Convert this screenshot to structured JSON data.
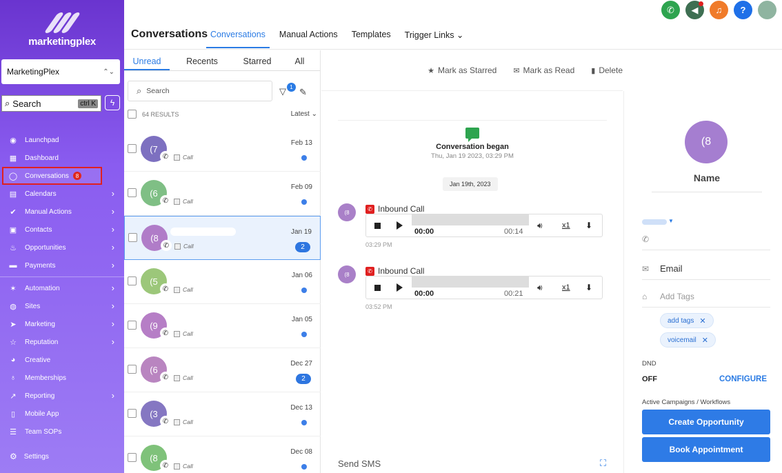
{
  "sidebar": {
    "brand": "marketingplex",
    "account": "MarketingPlex",
    "search_label": "Search",
    "search_shortcut": "ctrl K",
    "items": [
      {
        "label": "Launchpad",
        "icon": "rocket-icon",
        "glyph": "◉",
        "chevron": false
      },
      {
        "label": "Dashboard",
        "icon": "dashboard-icon",
        "glyph": "▦",
        "chevron": false
      },
      {
        "label": "Conversations",
        "icon": "chat-icon",
        "glyph": "◯",
        "chevron": false,
        "badge": "8",
        "active": true
      },
      {
        "label": "Calendars",
        "icon": "calendar-icon",
        "glyph": "▤",
        "chevron": true
      },
      {
        "label": "Manual Actions",
        "icon": "check-circle-icon",
        "glyph": "✔",
        "chevron": true
      },
      {
        "label": "Contacts",
        "icon": "contacts-icon",
        "glyph": "▣",
        "chevron": true
      },
      {
        "label": "Opportunities",
        "icon": "fire-icon",
        "glyph": "♨",
        "chevron": true
      },
      {
        "label": "Payments",
        "icon": "card-icon",
        "glyph": "▬",
        "chevron": true,
        "divider_after": true
      },
      {
        "label": "Automation",
        "icon": "magic-icon",
        "glyph": "✶",
        "chevron": true
      },
      {
        "label": "Sites",
        "icon": "globe-icon",
        "glyph": "◍",
        "chevron": true
      },
      {
        "label": "Marketing",
        "icon": "send-icon",
        "glyph": "➤",
        "chevron": true
      },
      {
        "label": "Reputation",
        "icon": "star-icon",
        "glyph": "☆",
        "chevron": true
      },
      {
        "label": "Creative",
        "icon": "palette-icon",
        "glyph": "◕",
        "chevron": false
      },
      {
        "label": "Memberships",
        "icon": "award-icon",
        "glyph": "♁",
        "chevron": false
      },
      {
        "label": "Reporting",
        "icon": "chart-icon",
        "glyph": "↗",
        "chevron": true
      },
      {
        "label": "Mobile App",
        "icon": "mobile-icon",
        "glyph": "▯",
        "chevron": false
      },
      {
        "label": "Team SOPs",
        "icon": "list-icon",
        "glyph": "☰",
        "chevron": false
      }
    ],
    "settings_label": "Settings"
  },
  "header": {
    "title": "Conversations",
    "tabs": [
      {
        "label": "Conversations",
        "active": true
      },
      {
        "label": "Manual Actions",
        "active": false
      },
      {
        "label": "Templates",
        "active": false
      },
      {
        "label": "Trigger Links ⌄",
        "active": false
      }
    ],
    "help_glyph": "?"
  },
  "list": {
    "tabs": [
      {
        "label": "Unread",
        "active": true,
        "width": 66
      },
      {
        "label": "Recents",
        "active": false,
        "width": 94
      },
      {
        "label": "Starred",
        "active": false,
        "width": 66
      },
      {
        "label": "All",
        "active": false,
        "width": 57
      }
    ],
    "search_placeholder": "Search",
    "filter_count": "1",
    "results": "64 RESULTS",
    "sort": "Latest ⌄",
    "items": [
      {
        "initial": "(7",
        "color": "#7d70c0",
        "type": "Call",
        "date": "Feb 13",
        "indicator": "dot"
      },
      {
        "initial": "(6",
        "color": "#7fbf85",
        "type": "Call",
        "date": "Feb 09",
        "indicator": "dot"
      },
      {
        "initial": "(8",
        "color": "#b07cc8",
        "type": "Call",
        "date": "Jan 19",
        "indicator": "count",
        "count": "2",
        "selected": true
      },
      {
        "initial": "(5",
        "color": "#9cc77a",
        "type": "Call",
        "date": "Jan 06",
        "indicator": "dot"
      },
      {
        "initial": "(9",
        "color": "#b67ec6",
        "type": "Call",
        "date": "Jan 05",
        "indicator": "dot"
      },
      {
        "initial": "(6",
        "color": "#b985c0",
        "type": "Call",
        "date": "Dec 27",
        "indicator": "count",
        "count": "2"
      },
      {
        "initial": "(3",
        "color": "#8577c2",
        "type": "Call",
        "date": "Dec 13",
        "indicator": "dot"
      },
      {
        "initial": "(8",
        "color": "#7fc27a",
        "type": "Call",
        "date": "Dec 08",
        "indicator": "dot"
      }
    ]
  },
  "thread": {
    "actions": {
      "star": "Mark as Starred",
      "read": "Mark as Read",
      "delete": "Delete"
    },
    "began_title": "Conversation began",
    "began_time": "Thu, Jan 19 2023, 03:29 PM",
    "date_chip": "Jan 19th, 2023",
    "calls": [
      {
        "avatar": "(8",
        "label": "Inbound Call",
        "current": "00:00",
        "duration": "00:14",
        "speed": "x1",
        "time": "03:29 PM"
      },
      {
        "avatar": "(8",
        "label": "Inbound Call",
        "current": "00:00",
        "duration": "00:21",
        "speed": "x1",
        "time": "03:52 PM"
      }
    ],
    "send_sms": "Send SMS"
  },
  "contact": {
    "avatar": "(8",
    "name": "Name",
    "email_label": "Email",
    "tags_placeholder": "Add Tags",
    "tags": [
      "add tags",
      "voicemail"
    ],
    "dnd_label": "DND",
    "dnd_value": "OFF",
    "configure": "CONFIGURE",
    "active_campaigns": "Active Campaigns / Workflows",
    "create_opportunity": "Create Opportunity",
    "book_appointment": "Book Appointment"
  }
}
